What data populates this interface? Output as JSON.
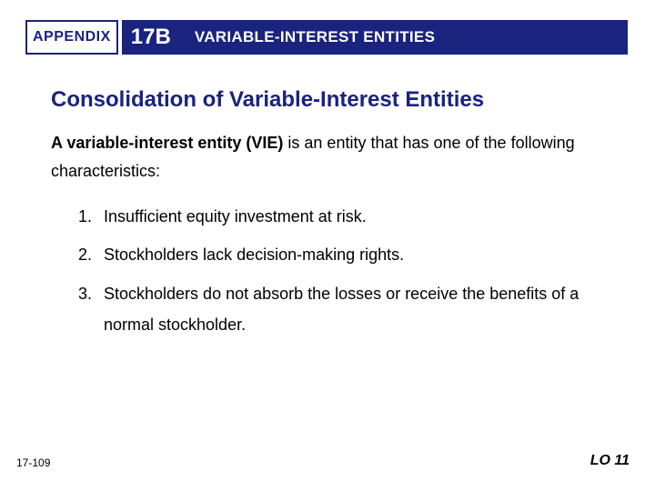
{
  "header": {
    "appendix_label": "APPENDIX",
    "appendix_number": "17B",
    "title": "VARIABLE-INTEREST ENTITIES",
    "colors": {
      "navy": "#1a237e",
      "white": "#ffffff"
    }
  },
  "section": {
    "title": "Consolidation of Variable-Interest Entities",
    "intro_bold": "A variable-interest entity (VIE)",
    "intro_rest": " is an entity that has one of the following characteristics:",
    "items": [
      {
        "num": "1.",
        "text": "Insufficient equity investment at risk."
      },
      {
        "num": "2.",
        "text": "Stockholders lack decision-making rights."
      },
      {
        "num": "3.",
        "text": "Stockholders do not absorb the losses or receive the benefits of a normal stockholder."
      }
    ]
  },
  "footer": {
    "page": "17-109",
    "lo": "LO 11"
  }
}
